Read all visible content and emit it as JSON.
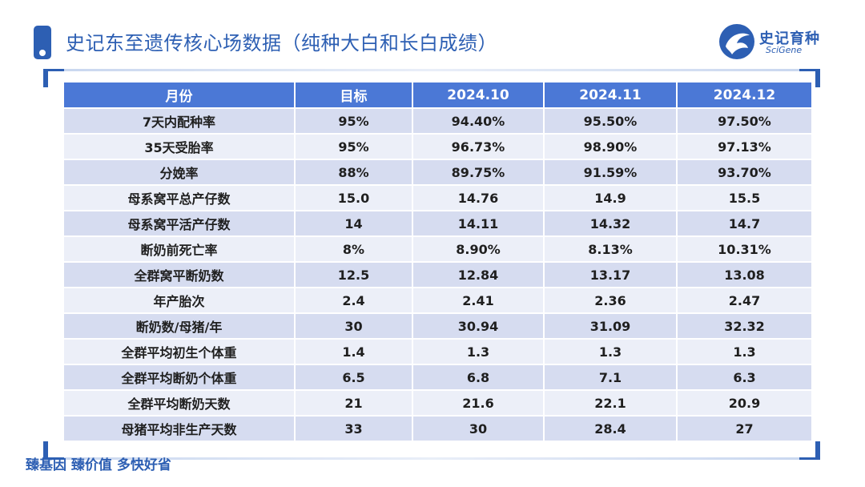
{
  "header": {
    "title": "史记东至遗传核心场数据（纯种大白和长白成绩）"
  },
  "logo": {
    "name_cn": "史记育种",
    "name_en": "SciGene",
    "brand_color": "#2d5fb3"
  },
  "table": {
    "columns": [
      "月份",
      "目标",
      "2024.10",
      "2024.11",
      "2024.12"
    ],
    "rows": [
      {
        "metric": "7天内配种率",
        "target": "95%",
        "m2024_10": "94.40%",
        "m2024_11": "95.50%",
        "m2024_12": "97.50%"
      },
      {
        "metric": "35天受胎率",
        "target": "95%",
        "m2024_10": "96.73%",
        "m2024_11": "98.90%",
        "m2024_12": "97.13%"
      },
      {
        "metric": "分娩率",
        "target": "88%",
        "m2024_10": "89.75%",
        "m2024_11": "91.59%",
        "m2024_12": "93.70%"
      },
      {
        "metric": "母系窝平总产仔数",
        "target": "15.0",
        "m2024_10": "14.76",
        "m2024_11": "14.9",
        "m2024_12": "15.5"
      },
      {
        "metric": "母系窝平活产仔数",
        "target": "14",
        "m2024_10": "14.11",
        "m2024_11": "14.32",
        "m2024_12": "14.7"
      },
      {
        "metric": "断奶前死亡率",
        "target": "8%",
        "m2024_10": "8.90%",
        "m2024_11": "8.13%",
        "m2024_12": "10.31%"
      },
      {
        "metric": "全群窝平断奶数",
        "target": "12.5",
        "m2024_10": "12.84",
        "m2024_11": "13.17",
        "m2024_12": "13.08"
      },
      {
        "metric": "年产胎次",
        "target": "2.4",
        "m2024_10": "2.41",
        "m2024_11": "2.36",
        "m2024_12": "2.47"
      },
      {
        "metric": "断奶数/母猪/年",
        "target": "30",
        "m2024_10": "30.94",
        "m2024_11": "31.09",
        "m2024_12": "32.32"
      },
      {
        "metric": "全群平均初生个体重",
        "target": "1.4",
        "m2024_10": "1.3",
        "m2024_11": "1.3",
        "m2024_12": "1.3"
      },
      {
        "metric": "全群平均断奶个体重",
        "target": "6.5",
        "m2024_10": "6.8",
        "m2024_11": "7.1",
        "m2024_12": "6.3"
      },
      {
        "metric": "全群平均断奶天数",
        "target": "21",
        "m2024_10": "21.6",
        "m2024_11": "22.1",
        "m2024_12": "20.9"
      },
      {
        "metric": "母猪平均非生产天数",
        "target": "33",
        "m2024_10": "30",
        "m2024_11": "28.4",
        "m2024_12": "27"
      }
    ]
  },
  "footer": {
    "slogan": "臻基因 臻价值 多快好省"
  },
  "colors": {
    "header_bg": "#4b78d6",
    "row_odd": "#d6dcf0",
    "row_even": "#eceff8",
    "accent": "#2d5fb3"
  }
}
